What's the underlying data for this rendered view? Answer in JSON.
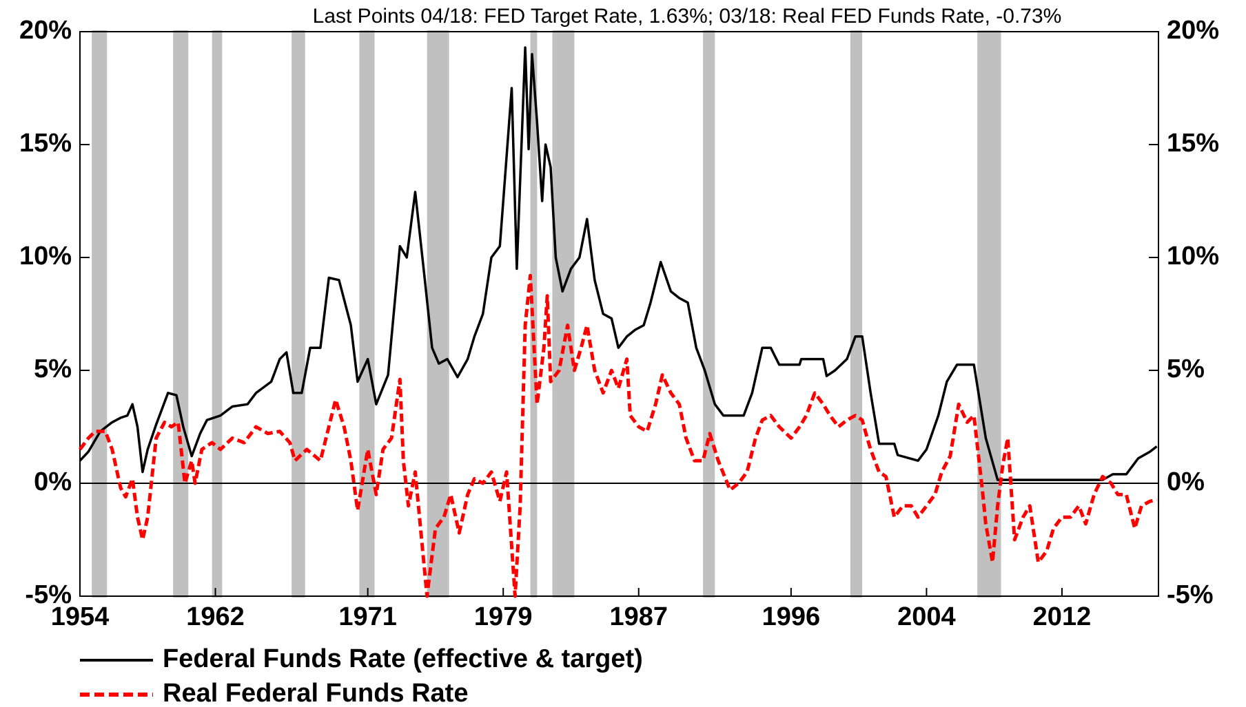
{
  "chart_data": {
    "type": "line",
    "title": "Last Points 04/18: FED Target Rate, 1.63%; 03/18: Real FED Funds Rate, -0.73%",
    "xlim": [
      1954,
      2017.7
    ],
    "xticks": [
      1954,
      1962,
      1971,
      1979,
      1987,
      1996,
      2004,
      2012
    ],
    "ylim": [
      -5,
      20
    ],
    "yticks": [
      {
        "value": -5,
        "label": "-5%"
      },
      {
        "value": 0,
        "label": "0%"
      },
      {
        "value": 5,
        "label": "5%"
      },
      {
        "value": 10,
        "label": "10%"
      },
      {
        "value": 15,
        "label": "15%"
      },
      {
        "value": 20,
        "label": "20%"
      }
    ],
    "y2lim": [
      -5,
      20
    ],
    "y2ticks": [
      {
        "value": -5,
        "label": "-5%"
      },
      {
        "value": 0,
        "label": "0%"
      },
      {
        "value": 5,
        "label": "5%"
      },
      {
        "value": 10,
        "label": "10%"
      },
      {
        "value": 15,
        "label": "15%"
      },
      {
        "value": 20,
        "label": "20%"
      }
    ],
    "recession_color": "#c0c0c0",
    "recessions": [
      [
        1954.7,
        1955.6
      ],
      [
        1959.5,
        1960.4
      ],
      [
        1961.8,
        1962.4
      ],
      [
        1966.5,
        1967.3
      ],
      [
        1970.5,
        1971.4
      ],
      [
        1974.5,
        1975.8
      ],
      [
        1980.6,
        1981.0
      ],
      [
        1981.9,
        1983.2
      ],
      [
        1990.8,
        1991.5
      ],
      [
        1999.5,
        2000.2
      ],
      [
        2007.0,
        2008.4
      ]
    ],
    "series": [
      {
        "name": "Federal Funds Rate (effective & target)",
        "color": "#000000",
        "dash": false,
        "x": [
          1954.0,
          1954.5,
          1955.2,
          1955.9,
          1956.4,
          1956.8,
          1957.1,
          1957.4,
          1957.7,
          1958.0,
          1958.5,
          1959.2,
          1959.7,
          1960.1,
          1960.6,
          1961.1,
          1961.5,
          1962.3,
          1963.0,
          1963.9,
          1964.4,
          1965.3,
          1965.8,
          1966.2,
          1966.6,
          1967.1,
          1967.6,
          1968.2,
          1968.7,
          1969.3,
          1970.0,
          1970.4,
          1971.0,
          1971.5,
          1972.2,
          1972.9,
          1973.3,
          1973.8,
          1974.3,
          1974.8,
          1975.2,
          1975.7,
          1976.3,
          1976.9,
          1977.3,
          1977.8,
          1978.3,
          1978.8,
          1979.1,
          1979.5,
          1979.8,
          1980.3,
          1980.5,
          1980.7,
          1981.0,
          1981.3,
          1981.5,
          1981.8,
          1982.1,
          1982.5,
          1983.0,
          1983.5,
          1983.95,
          1984.4,
          1984.9,
          1985.4,
          1985.8,
          1986.3,
          1986.8,
          1987.3,
          1987.7,
          1988.3,
          1988.9,
          1989.4,
          1989.9,
          1990.4,
          1990.9,
          1991.5,
          1992.0,
          1992.4,
          1993.2,
          1993.7,
          1994.3,
          1994.8,
          1995.3,
          1996.5,
          1996.6,
          1997.9,
          1998.1,
          1998.6,
          1999.3,
          1999.8,
          2000.2,
          2000.7,
          2001.2,
          2002.1,
          2002.3,
          2003.5,
          2004.0,
          2004.7,
          2005.2,
          2005.8,
          2006.8,
          2007.5,
          2008.2,
          2014.4,
          2015.0,
          2015.8,
          2016.5,
          2017.2,
          2017.6
        ],
        "values": [
          1.0,
          1.4,
          2.3,
          2.7,
          2.9,
          3.0,
          3.5,
          2.5,
          0.5,
          1.5,
          2.6,
          4.0,
          3.9,
          2.5,
          1.2,
          2.2,
          2.8,
          3.0,
          3.4,
          3.5,
          4.0,
          4.5,
          5.5,
          5.8,
          4.0,
          4.0,
          6.0,
          6.0,
          9.1,
          9.0,
          7.0,
          4.5,
          5.5,
          3.5,
          4.8,
          10.5,
          10.0,
          12.9,
          9.5,
          6.0,
          5.3,
          5.5,
          4.7,
          5.5,
          6.5,
          7.5,
          10.0,
          10.5,
          13.5,
          17.5,
          9.5,
          19.3,
          14.8,
          19.0,
          16.0,
          12.5,
          15.0,
          14.0,
          10.0,
          8.5,
          9.5,
          10.0,
          11.7,
          9.0,
          7.5,
          7.3,
          6.0,
          6.5,
          6.8,
          7.0,
          8.0,
          9.8,
          8.5,
          8.2,
          8.0,
          6.0,
          5.0,
          3.5,
          3.0,
          3.0,
          3.0,
          4.0,
          6.0,
          6.0,
          5.25,
          5.25,
          5.5,
          5.5,
          4.75,
          5.0,
          5.5,
          6.5,
          6.5,
          4.0,
          1.75,
          1.75,
          1.25,
          1.0,
          1.5,
          3.0,
          4.5,
          5.25,
          5.25,
          2.0,
          0.15,
          0.15,
          0.4,
          0.4,
          1.1,
          1.4,
          1.63
        ]
      },
      {
        "name": "Real Federal Funds Rate",
        "color": "#ff0000",
        "dash": true,
        "x": [
          1954.0,
          1954.5,
          1954.9,
          1955.5,
          1955.9,
          1956.4,
          1956.7,
          1957.1,
          1957.4,
          1957.7,
          1958.0,
          1958.5,
          1959.0,
          1959.4,
          1959.8,
          1960.2,
          1960.6,
          1960.8,
          1961.2,
          1961.8,
          1962.3,
          1963.0,
          1963.7,
          1964.4,
          1965.1,
          1965.8,
          1966.4,
          1966.7,
          1967.4,
          1968.2,
          1968.7,
          1969.1,
          1969.6,
          1970.0,
          1970.4,
          1971.0,
          1971.5,
          1971.9,
          1972.4,
          1972.9,
          1973.1,
          1973.4,
          1973.8,
          1974.5,
          1975.0,
          1975.5,
          1975.9,
          1976.4,
          1976.9,
          1977.3,
          1977.8,
          1978.3,
          1978.8,
          1979.2,
          1979.7,
          1980.0,
          1980.3,
          1980.6,
          1981.0,
          1981.4,
          1981.6,
          1981.8,
          1982.3,
          1982.8,
          1983.2,
          1983.6,
          1983.95,
          1984.4,
          1984.9,
          1985.4,
          1985.8,
          1986.3,
          1986.5,
          1987.0,
          1987.5,
          1988.0,
          1988.4,
          1988.9,
          1989.4,
          1989.8,
          1990.3,
          1990.8,
          1991.2,
          1991.7,
          1992.4,
          1992.9,
          1993.4,
          1993.9,
          1994.3,
          1994.8,
          1995.3,
          1996.0,
          1996.5,
          1996.9,
          1997.4,
          1997.9,
          1998.3,
          1998.8,
          1999.3,
          1999.8,
          2000.2,
          2000.5,
          2000.7,
          2001.2,
          2001.6,
          2002.1,
          2002.6,
          2003.1,
          2003.5,
          2004.0,
          2004.5,
          2004.9,
          2005.4,
          2005.9,
          2006.4,
          2006.8,
          2007.3,
          2007.5,
          2007.9,
          2008.2,
          2008.5,
          2008.8,
          2009.2,
          2009.7,
          2010.1,
          2010.6,
          2011.1,
          2011.5,
          2012.0,
          2012.5,
          2013.0,
          2013.4,
          2013.9,
          2014.4,
          2014.9,
          2015.3,
          2015.8,
          2016.3,
          2016.7,
          2017.2,
          2017.6
        ],
        "values": [
          1.5,
          2.0,
          2.3,
          2.3,
          1.5,
          -0.2,
          -0.6,
          0.2,
          -1.5,
          -2.5,
          -1.5,
          2.0,
          2.7,
          2.5,
          2.7,
          0.0,
          1.0,
          0.0,
          1.5,
          1.8,
          1.5,
          2.0,
          1.8,
          2.5,
          2.2,
          2.3,
          1.8,
          1.0,
          1.5,
          1.0,
          2.5,
          3.7,
          2.5,
          1.0,
          -1.2,
          1.5,
          -0.5,
          1.5,
          2.0,
          4.6,
          1.0,
          -1.0,
          0.5,
          -5.0,
          -2.0,
          -1.5,
          -0.5,
          -2.2,
          -0.5,
          0.2,
          0.0,
          0.5,
          -0.8,
          0.5,
          -5.0,
          -1.0,
          7.0,
          9.2,
          3.5,
          6.0,
          8.3,
          4.5,
          5.0,
          7.0,
          5.0,
          6.0,
          7.0,
          5.0,
          4.0,
          5.0,
          4.2,
          5.5,
          3.0,
          2.5,
          2.3,
          3.5,
          4.8,
          4.0,
          3.5,
          2.0,
          1.0,
          1.0,
          2.2,
          1.0,
          -0.3,
          0.0,
          0.5,
          2.0,
          2.8,
          3.0,
          2.5,
          2.0,
          2.5,
          3.0,
          4.0,
          3.5,
          3.0,
          2.5,
          2.8,
          3.0,
          2.8,
          2.0,
          1.5,
          0.5,
          0.3,
          -1.5,
          -1.0,
          -1.0,
          -1.5,
          -1.0,
          -0.5,
          0.5,
          1.2,
          3.5,
          2.7,
          3.0,
          -0.3,
          -1.8,
          -3.5,
          -1.0,
          0.8,
          2.0,
          -2.5,
          -1.5,
          -1.0,
          -3.5,
          -3.0,
          -2.0,
          -1.5,
          -1.5,
          -1.0,
          -1.8,
          -0.5,
          0.3,
          0.0,
          -0.5,
          -0.5,
          -2.0,
          -1.0,
          -0.8,
          -0.73
        ]
      }
    ]
  }
}
